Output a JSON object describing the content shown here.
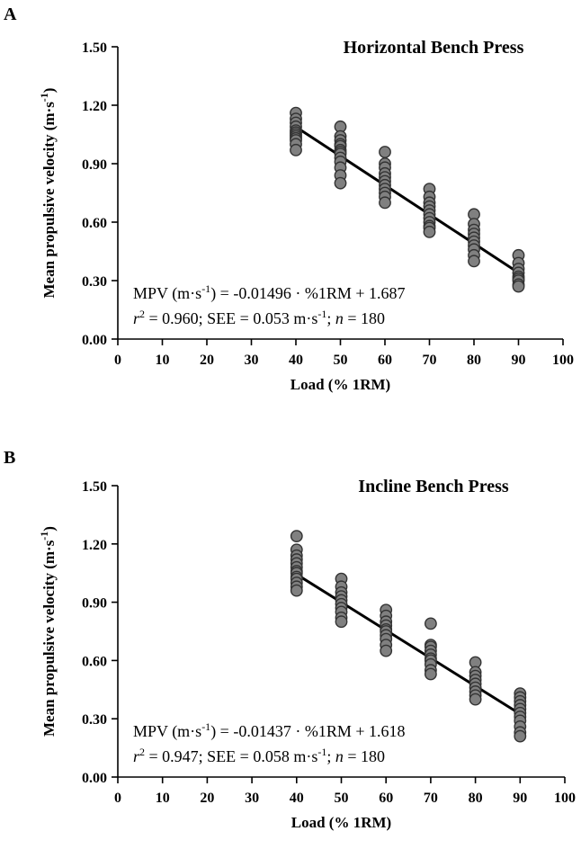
{
  "chart_data": [
    {
      "panel_label": "A",
      "type": "scatter",
      "title": "Horizontal Bench Press",
      "xlabel": "Load (% 1RM)",
      "ylabel": "Mean propulsive velocity (m·s",
      "ylabel_sup": "-1",
      "ylabel_close": ")",
      "xlim": [
        0,
        100
      ],
      "ylim": [
        0,
        1.5
      ],
      "x_ticks": [
        0,
        10,
        20,
        30,
        40,
        50,
        60,
        70,
        80,
        90,
        100
      ],
      "x_tick_labels": [
        "0",
        "10",
        "20",
        "30",
        "40",
        "50",
        "60",
        "70",
        "80",
        "90",
        "100"
      ],
      "y_ticks": [
        0,
        0.3,
        0.6,
        0.9,
        1.2,
        1.5
      ],
      "y_tick_labels": [
        "0.00",
        "0.30",
        "0.60",
        "0.90",
        "1.20",
        "1.50"
      ],
      "grid": false,
      "marker_color": "#808080",
      "marker_edge_color": "#333333",
      "series": [
        {
          "x": [
            40,
            40,
            40,
            40,
            40,
            40,
            40,
            40,
            40,
            40,
            40,
            40,
            50,
            50,
            50,
            50,
            50,
            50,
            50,
            50,
            50,
            50,
            50,
            50,
            50,
            60,
            60,
            60,
            60,
            60,
            60,
            60,
            60,
            60,
            60,
            60,
            70,
            70,
            70,
            70,
            70,
            70,
            70,
            70,
            70,
            70,
            70,
            80,
            80,
            80,
            80,
            80,
            80,
            80,
            80,
            80,
            80,
            90,
            90,
            90,
            90,
            90,
            90,
            90,
            90,
            90
          ],
          "y": [
            1.16,
            1.13,
            1.11,
            1.09,
            1.07,
            1.06,
            1.05,
            1.04,
            1.03,
            1.02,
            1.0,
            0.97,
            1.09,
            1.04,
            1.02,
            1.0,
            0.99,
            0.97,
            0.96,
            0.95,
            0.93,
            0.91,
            0.88,
            0.84,
            0.8,
            0.96,
            0.9,
            0.88,
            0.85,
            0.83,
            0.81,
            0.79,
            0.77,
            0.75,
            0.73,
            0.7,
            0.77,
            0.73,
            0.7,
            0.68,
            0.66,
            0.64,
            0.62,
            0.6,
            0.58,
            0.57,
            0.55,
            0.64,
            0.59,
            0.56,
            0.54,
            0.52,
            0.5,
            0.48,
            0.46,
            0.43,
            0.4,
            0.43,
            0.39,
            0.36,
            0.34,
            0.32,
            0.31,
            0.3,
            0.28,
            0.27
          ]
        }
      ],
      "fit_line": {
        "slope": -0.01496,
        "intercept": 1.687,
        "x_range": [
          40,
          90
        ]
      },
      "annotation": {
        "line1_prefix": "MPV (m·s",
        "line1_sup": "-1",
        "line1_suffix": ") = -0.01496 · %1RM + 1.687",
        "r_symbol": "r",
        "r_sup": "2",
        "r_value": " = 0.960; SEE = 0.053 m·s",
        "see_sup": "-1",
        "n_sep": "; ",
        "n_symbol": "n",
        "n_value": " = 180"
      }
    },
    {
      "panel_label": "B",
      "type": "scatter",
      "title": "Incline Bench Press",
      "xlabel": "Load (% 1RM)",
      "ylabel": "Mean propulsive velocity (m·s",
      "ylabel_sup": "-1",
      "ylabel_close": ")",
      "xlim": [
        0,
        100
      ],
      "ylim": [
        0,
        1.5
      ],
      "x_ticks": [
        0,
        10,
        20,
        30,
        40,
        50,
        60,
        70,
        80,
        90,
        100
      ],
      "x_tick_labels": [
        "0",
        "10",
        "20",
        "30",
        "40",
        "50",
        "60",
        "70",
        "80",
        "90",
        "100"
      ],
      "y_ticks": [
        0,
        0.3,
        0.6,
        0.9,
        1.2,
        1.5
      ],
      "y_tick_labels": [
        "0.00",
        "0.30",
        "0.60",
        "0.90",
        "1.20",
        "1.50"
      ],
      "grid": false,
      "marker_color": "#808080",
      "marker_edge_color": "#333333",
      "series": [
        {
          "x": [
            40,
            40,
            40,
            40,
            40,
            40,
            40,
            40,
            40,
            40,
            40,
            40,
            40,
            50,
            50,
            50,
            50,
            50,
            50,
            50,
            50,
            50,
            50,
            60,
            60,
            60,
            60,
            60,
            60,
            60,
            60,
            60,
            60,
            70,
            70,
            70,
            70,
            70,
            70,
            70,
            70,
            70,
            70,
            80,
            80,
            80,
            80,
            80,
            80,
            80,
            80,
            80,
            90,
            90,
            90,
            90,
            90,
            90,
            90,
            90,
            90,
            90,
            90
          ],
          "y": [
            1.24,
            1.17,
            1.14,
            1.12,
            1.1,
            1.08,
            1.06,
            1.05,
            1.03,
            1.02,
            1.0,
            0.98,
            0.96,
            1.02,
            0.98,
            0.95,
            0.93,
            0.91,
            0.89,
            0.87,
            0.85,
            0.82,
            0.8,
            0.86,
            0.83,
            0.8,
            0.78,
            0.76,
            0.75,
            0.73,
            0.71,
            0.68,
            0.65,
            0.79,
            0.68,
            0.67,
            0.65,
            0.63,
            0.61,
            0.6,
            0.58,
            0.55,
            0.53,
            0.59,
            0.54,
            0.52,
            0.5,
            0.48,
            0.46,
            0.44,
            0.42,
            0.4,
            0.43,
            0.41,
            0.39,
            0.37,
            0.35,
            0.33,
            0.31,
            0.29,
            0.26,
            0.23,
            0.21
          ]
        }
      ],
      "fit_line": {
        "slope": -0.01437,
        "intercept": 1.618,
        "x_range": [
          40,
          90
        ]
      },
      "annotation": {
        "line1_prefix": "MPV (m·s",
        "line1_sup": "-1",
        "line1_suffix": ") = -0.01437 · %1RM + 1.618",
        "r_symbol": "r",
        "r_sup": "2",
        "r_value": " = 0.947; SEE = 0.058 m·s",
        "see_sup": "-1",
        "n_sep": "; ",
        "n_symbol": "n",
        "n_value": " = 180"
      }
    }
  ]
}
